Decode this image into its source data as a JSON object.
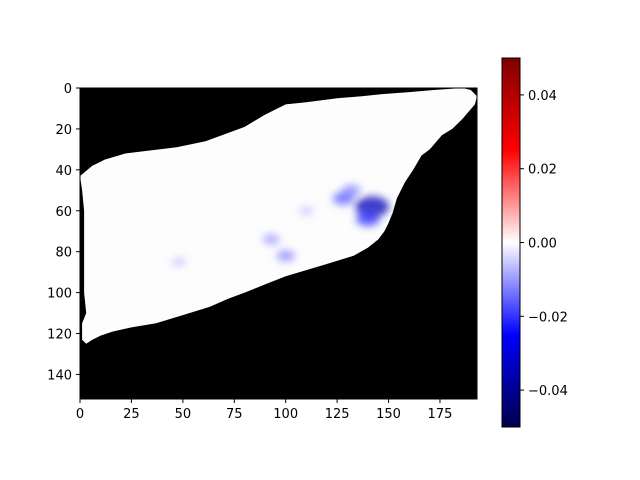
{
  "chart_data": {
    "type": "heatmap",
    "title": "",
    "xlabel": "",
    "ylabel": "",
    "image_width": 193,
    "image_height": 152,
    "xlim": [
      0,
      193
    ],
    "ylim": [
      152,
      0
    ],
    "x_ticks": [
      0,
      25,
      50,
      75,
      100,
      125,
      150,
      175
    ],
    "y_ticks": [
      0,
      20,
      40,
      60,
      80,
      100,
      120,
      140
    ],
    "x_tick_labels": [
      "0",
      "25",
      "50",
      "75",
      "100",
      "125",
      "150",
      "175"
    ],
    "y_tick_labels": [
      "0",
      "20",
      "40",
      "60",
      "80",
      "100",
      "120",
      "140"
    ],
    "colormap": "seismic",
    "colorbar": {
      "vmin": -0.05,
      "vmax": 0.05,
      "ticks": [
        -0.04,
        -0.02,
        0.0,
        0.02,
        0.04
      ],
      "tick_labels": [
        "−0.04",
        "−0.02",
        "0.00",
        "0.02",
        "0.04"
      ],
      "colors": [
        "#00004c",
        "#0000ff",
        "#ffffff",
        "#ff0000",
        "#7f0000"
      ]
    },
    "masked_color": "#000000",
    "region_outline": [
      [
        0,
        13
      ],
      [
        6,
        8
      ],
      [
        10,
        6
      ],
      [
        12,
        5
      ],
      [
        22,
        2
      ],
      [
        47,
        -1
      ],
      [
        61,
        -4
      ],
      [
        80,
        -11
      ],
      [
        90,
        -17
      ],
      [
        100,
        -22
      ],
      [
        110,
        -23
      ],
      [
        125,
        -25
      ],
      [
        137,
        -26
      ],
      [
        147,
        -27
      ],
      [
        160,
        -28
      ],
      [
        172,
        -29
      ],
      [
        186,
        -30
      ],
      [
        190,
        -29
      ],
      [
        193,
        -26
      ],
      [
        192,
        -22
      ],
      [
        186,
        -15
      ],
      [
        181,
        -10
      ],
      [
        176,
        -7
      ],
      [
        170,
        0
      ],
      [
        166,
        3
      ],
      [
        162,
        10
      ],
      [
        158,
        16
      ],
      [
        154,
        24
      ],
      [
        152,
        31
      ],
      [
        150,
        36
      ],
      [
        148,
        40
      ],
      [
        145,
        44
      ],
      [
        140,
        48
      ],
      [
        133,
        52
      ],
      [
        120,
        56
      ],
      [
        110,
        59
      ],
      [
        100,
        62
      ],
      [
        90,
        66
      ],
      [
        80,
        70
      ],
      [
        72,
        73
      ],
      [
        63,
        77
      ],
      [
        50,
        81
      ],
      [
        37,
        85
      ],
      [
        25,
        87
      ],
      [
        16,
        89
      ],
      [
        10,
        91
      ],
      [
        6,
        93
      ],
      [
        3,
        95
      ],
      [
        1,
        93
      ],
      [
        1,
        85
      ],
      [
        3,
        80
      ],
      [
        2,
        70
      ],
      [
        2,
        60
      ],
      [
        2,
        50
      ],
      [
        2,
        40
      ],
      [
        2,
        30
      ],
      [
        1,
        20
      ]
    ],
    "hotspots": [
      {
        "x": 132,
        "y": 50,
        "value": -0.012
      },
      {
        "x": 142,
        "y": 58,
        "value": -0.035
      },
      {
        "x": 140,
        "y": 64,
        "value": -0.02
      },
      {
        "x": 128,
        "y": 54,
        "value": -0.016
      },
      {
        "x": 110,
        "y": 60,
        "value": -0.006
      },
      {
        "x": 93,
        "y": 74,
        "value": -0.01
      },
      {
        "x": 100,
        "y": 82,
        "value": -0.012
      },
      {
        "x": 48,
        "y": 85,
        "value": -0.006
      }
    ]
  }
}
